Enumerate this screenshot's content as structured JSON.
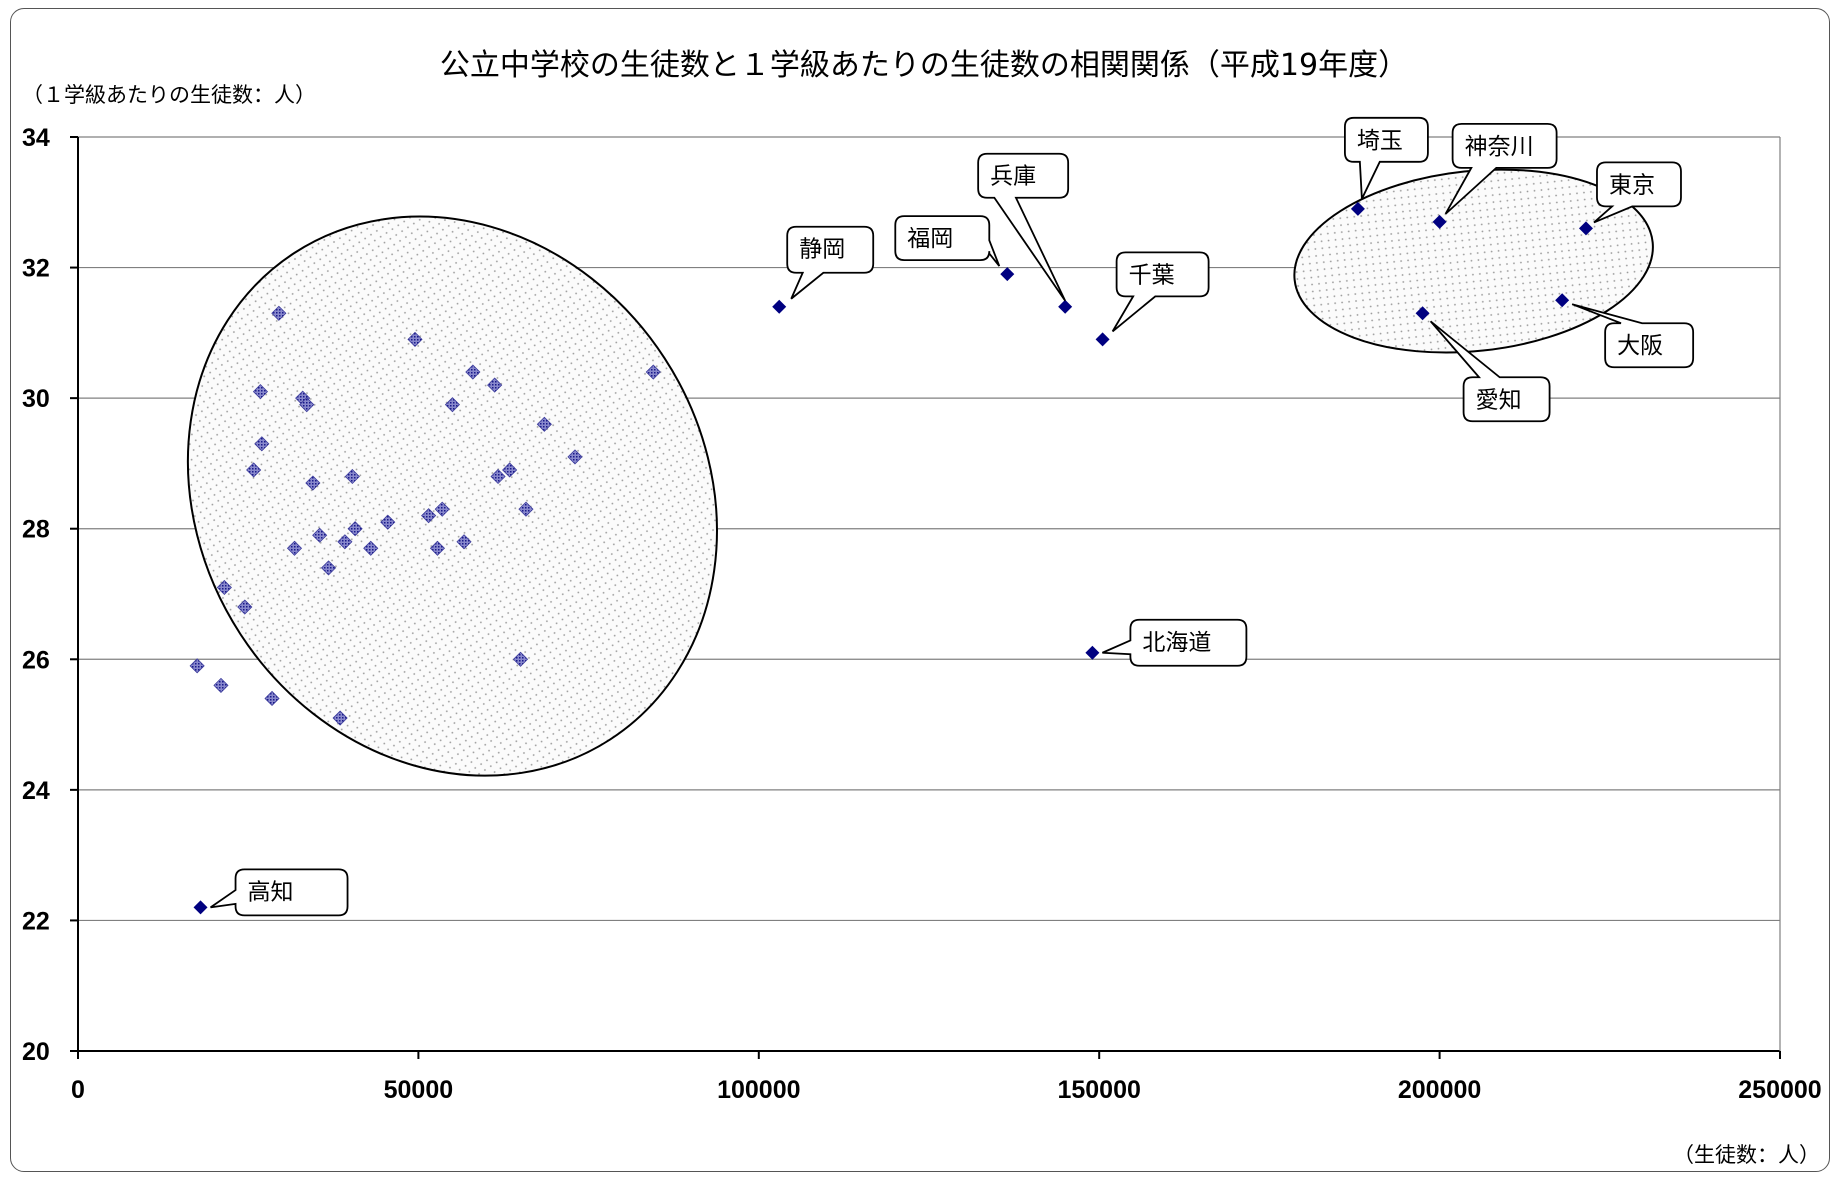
{
  "chart_data": {
    "type": "scatter",
    "title": "公立中学校の生徒数と１学級あたりの生徒数の相関関係（平成19年度）",
    "ylabel": "（１学級あたりの生徒数：人）",
    "xlabel": "（生徒数：人）",
    "xlim": [
      0,
      250000
    ],
    "ylim": [
      20,
      34
    ],
    "x_ticks": [
      0,
      50000,
      100000,
      150000,
      200000,
      250000
    ],
    "y_ticks": [
      20,
      22,
      24,
      26,
      28,
      30,
      32,
      34
    ],
    "grid": "horizontal",
    "colors": {
      "marker": "#000080",
      "grid": "#808080",
      "cluster_fill": "#f3f3f3"
    },
    "points": [
      {
        "x": 17500,
        "y": 25.9
      },
      {
        "x": 21000,
        "y": 25.6
      },
      {
        "x": 21500,
        "y": 27.1
      },
      {
        "x": 24500,
        "y": 26.8
      },
      {
        "x": 25800,
        "y": 28.9
      },
      {
        "x": 26800,
        "y": 30.1
      },
      {
        "x": 27000,
        "y": 29.3
      },
      {
        "x": 28500,
        "y": 25.4
      },
      {
        "x": 29500,
        "y": 31.3
      },
      {
        "x": 31800,
        "y": 27.7
      },
      {
        "x": 33000,
        "y": 30.0
      },
      {
        "x": 33600,
        "y": 29.9
      },
      {
        "x": 34500,
        "y": 28.7
      },
      {
        "x": 35500,
        "y": 27.9
      },
      {
        "x": 36800,
        "y": 27.4
      },
      {
        "x": 38500,
        "y": 25.1
      },
      {
        "x": 39200,
        "y": 27.8
      },
      {
        "x": 40300,
        "y": 28.8
      },
      {
        "x": 40700,
        "y": 28.0
      },
      {
        "x": 43000,
        "y": 27.7
      },
      {
        "x": 45500,
        "y": 28.1
      },
      {
        "x": 49500,
        "y": 30.9
      },
      {
        "x": 51500,
        "y": 28.2
      },
      {
        "x": 52800,
        "y": 27.7
      },
      {
        "x": 53500,
        "y": 28.3
      },
      {
        "x": 55000,
        "y": 29.9
      },
      {
        "x": 56700,
        "y": 27.8
      },
      {
        "x": 58000,
        "y": 30.4
      },
      {
        "x": 61200,
        "y": 30.2
      },
      {
        "x": 61700,
        "y": 28.8
      },
      {
        "x": 63400,
        "y": 28.9
      },
      {
        "x": 65000,
        "y": 26.0
      },
      {
        "x": 65800,
        "y": 28.3
      },
      {
        "x": 68500,
        "y": 29.6
      },
      {
        "x": 73000,
        "y": 29.1
      },
      {
        "x": 84500,
        "y": 30.4
      },
      {
        "x": 18000,
        "y": 22.2,
        "label": "高知"
      },
      {
        "x": 103000,
        "y": 31.4,
        "label": "静岡"
      },
      {
        "x": 136500,
        "y": 31.9,
        "label": "福岡"
      },
      {
        "x": 145000,
        "y": 31.4,
        "label": "兵庫"
      },
      {
        "x": 150500,
        "y": 30.9,
        "label": "千葉"
      },
      {
        "x": 149000,
        "y": 26.1,
        "label": "北海道"
      },
      {
        "x": 188000,
        "y": 32.9,
        "label": "埼玉"
      },
      {
        "x": 200000,
        "y": 32.7,
        "label": "神奈川"
      },
      {
        "x": 221500,
        "y": 32.6,
        "label": "東京"
      },
      {
        "x": 197500,
        "y": 31.3,
        "label": "愛知"
      },
      {
        "x": 218000,
        "y": 31.5,
        "label": "大阪"
      }
    ]
  }
}
